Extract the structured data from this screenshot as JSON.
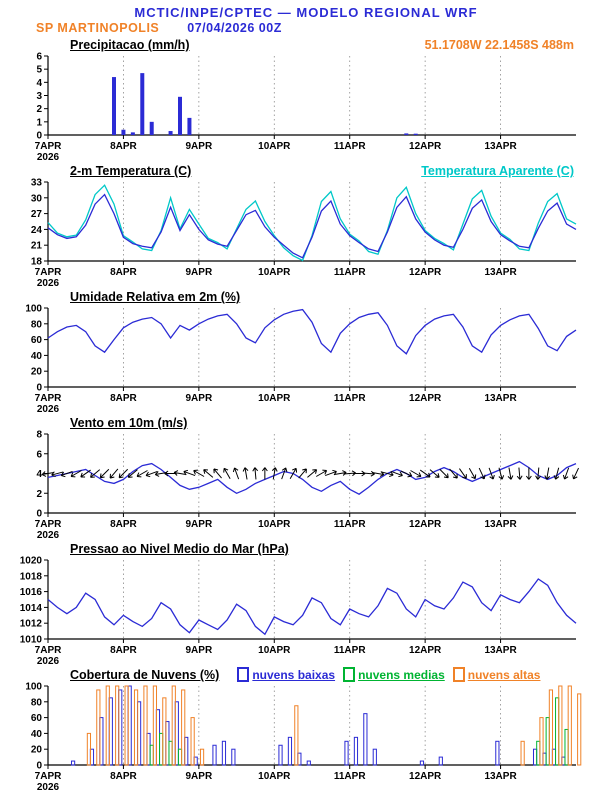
{
  "header": {
    "title": "MCTIC/INPE/CPTEC — MODELO REGIONAL WRF",
    "station": "SP MARTINOPOLIS",
    "run": "07/04/2026 00Z",
    "location": "51.1708W 22.1458S 488m"
  },
  "colors": {
    "blue": "#2b2bd5",
    "cyan": "#00c8c8",
    "green": "#00b432",
    "orange": "#f08228",
    "black": "#000000",
    "grid": "#8c8c8c"
  },
  "x_axis": {
    "tmax": 168,
    "step_hours": 3,
    "ticks": [
      {
        "t": 0,
        "label": "7APR",
        "sub": "2026"
      },
      {
        "t": 24,
        "label": "8APR"
      },
      {
        "t": 48,
        "label": "9APR"
      },
      {
        "t": 72,
        "label": "10APR"
      },
      {
        "t": 96,
        "label": "11APR"
      },
      {
        "t": 120,
        "label": "12APR"
      },
      {
        "t": 144,
        "label": "13APR"
      }
    ]
  },
  "chart_data": [
    {
      "type": "bar",
      "title": "Precipitacao (mm/h)",
      "ylim": [
        0,
        6
      ],
      "yticks": [
        0,
        1,
        2,
        3,
        4,
        5,
        6
      ],
      "series": [
        {
          "name": "precipitacao",
          "color_key": "blue",
          "values": [
            0,
            0,
            0,
            0,
            0,
            0,
            0,
            4.4,
            0.4,
            0.2,
            4.7,
            1.0,
            0,
            0.3,
            2.9,
            1.3,
            0,
            0,
            0,
            0,
            0,
            0,
            0,
            0,
            0,
            0,
            0,
            0,
            0,
            0,
            0,
            0,
            0,
            0,
            0,
            0,
            0,
            0,
            0.12,
            0.1,
            0,
            0,
            0,
            0,
            0,
            0,
            0,
            0,
            0,
            0,
            0,
            0,
            0,
            0,
            0,
            0,
            0
          ]
        }
      ]
    },
    {
      "type": "line",
      "title": "2-m Temperatura (C)",
      "legend": "Temperatura Aparente (C)",
      "ylim": [
        18,
        33
      ],
      "yticks": [
        18,
        21,
        24,
        27,
        30,
        33
      ],
      "series": [
        {
          "name": "temperatura-aparente",
          "color_key": "cyan",
          "values": [
            25.3,
            23.3,
            22.6,
            22.9,
            25.8,
            30.6,
            32.4,
            28.8,
            22.8,
            21.6,
            20.3,
            20.0,
            23.8,
            30.0,
            24.1,
            27.8,
            25.0,
            22.3,
            21.5,
            20.3,
            24.1,
            27.8,
            29.4,
            25.5,
            22.8,
            20.5,
            19.0,
            18.1,
            22.8,
            29.3,
            31.2,
            26.0,
            23.1,
            21.8,
            19.8,
            19.3,
            23.8,
            30.0,
            32.0,
            27.0,
            23.8,
            22.3,
            21.3,
            20.1,
            25.0,
            29.8,
            31.4,
            26.5,
            23.3,
            22.1,
            20.3,
            20.0,
            25.2,
            29.3,
            30.8,
            26.0,
            25.0
          ]
        },
        {
          "name": "temperatura-2m",
          "color_key": "blue",
          "values": [
            24.3,
            23.0,
            22.3,
            22.6,
            24.8,
            28.8,
            30.6,
            27.0,
            22.5,
            21.3,
            20.8,
            20.5,
            23.5,
            28.2,
            23.8,
            26.8,
            24.0,
            22.0,
            21.2,
            20.8,
            23.8,
            26.8,
            27.6,
            24.5,
            22.5,
            21.0,
            19.5,
            18.6,
            22.5,
            27.5,
            29.4,
            25.0,
            22.8,
            21.5,
            20.3,
            19.8,
            23.5,
            28.2,
            30.2,
            26.0,
            23.5,
            22.0,
            21.0,
            20.6,
            24.0,
            28.0,
            29.6,
            25.5,
            23.0,
            21.8,
            20.8,
            20.5,
            24.2,
            27.5,
            29.0,
            25.0,
            24.0
          ]
        }
      ]
    },
    {
      "type": "line",
      "title": "Umidade Relativa em 2m (%)",
      "ylim": [
        0,
        100
      ],
      "yticks": [
        0,
        20,
        40,
        60,
        80,
        100
      ],
      "series": [
        {
          "name": "umidade-relativa",
          "color_key": "blue",
          "values": [
            62,
            70,
            76,
            78,
            70,
            52,
            44,
            60,
            75,
            82,
            86,
            88,
            80,
            62,
            78,
            72,
            80,
            86,
            90,
            92,
            80,
            62,
            56,
            75,
            85,
            92,
            96,
            98,
            82,
            55,
            44,
            68,
            80,
            88,
            92,
            94,
            78,
            52,
            42,
            65,
            78,
            86,
            90,
            92,
            76,
            52,
            44,
            66,
            78,
            85,
            90,
            92,
            74,
            52,
            46,
            64,
            72
          ]
        }
      ]
    },
    {
      "type": "wind",
      "title": "Vento em 10m (m/s)",
      "ylim": [
        0,
        8
      ],
      "yticks": [
        0,
        2,
        4,
        6,
        8
      ],
      "series": [
        {
          "name": "velocidade-vento",
          "color_key": "blue",
          "values": [
            3.6,
            3.8,
            4.0,
            4.2,
            4.4,
            3.8,
            3.2,
            3.0,
            3.4,
            4.2,
            4.8,
            5.0,
            4.4,
            3.6,
            2.8,
            2.4,
            2.6,
            3.0,
            3.4,
            2.6,
            2.0,
            2.4,
            3.0,
            3.4,
            3.8,
            4.2,
            4.0,
            3.4,
            2.6,
            2.2,
            2.8,
            3.2,
            2.4,
            1.9,
            2.6,
            3.4,
            4.0,
            4.4,
            4.0,
            3.4,
            3.6,
            4.2,
            4.6,
            4.2,
            3.6,
            3.2,
            3.6,
            4.0,
            4.4,
            4.8,
            5.2,
            4.6,
            3.8,
            3.4,
            3.8,
            4.6,
            5.0
          ]
        }
      ],
      "arrows": {
        "y": 4,
        "color_key": "black",
        "rot": [
          170,
          165,
          160,
          150,
          145,
          140,
          135,
          130,
          135,
          140,
          150,
          160,
          170,
          180,
          190,
          200,
          210,
          220,
          230,
          240,
          250,
          260,
          265,
          270,
          280,
          290,
          300,
          310,
          320,
          330,
          340,
          350,
          355,
          360,
          365,
          370,
          375,
          380,
          385,
          390,
          395,
          400,
          405,
          410,
          415,
          420,
          425,
          430,
          435,
          440,
          445,
          450,
          455,
          460,
          465,
          470,
          475
        ]
      }
    },
    {
      "type": "line",
      "title": "Pressao ao Nivel Medio do Mar (hPa)",
      "ylim": [
        1010,
        1020
      ],
      "yticks": [
        1010,
        1012,
        1014,
        1016,
        1018,
        1020
      ],
      "series": [
        {
          "name": "pressao-nivel-mar",
          "color_key": "blue",
          "values": [
            1015.0,
            1014.0,
            1013.2,
            1014.0,
            1015.8,
            1015.0,
            1012.8,
            1011.8,
            1013.0,
            1012.2,
            1011.6,
            1012.6,
            1014.6,
            1013.8,
            1011.8,
            1010.8,
            1012.4,
            1011.8,
            1011.2,
            1012.4,
            1014.4,
            1013.6,
            1011.6,
            1010.6,
            1012.8,
            1012.2,
            1011.8,
            1013.0,
            1015.2,
            1014.6,
            1012.6,
            1011.8,
            1013.8,
            1013.2,
            1012.8,
            1014.2,
            1016.4,
            1015.8,
            1013.8,
            1012.8,
            1015.0,
            1014.2,
            1013.8,
            1015.2,
            1017.2,
            1016.6,
            1014.6,
            1013.6,
            1015.6,
            1015.0,
            1014.6,
            1016.0,
            1017.6,
            1016.8,
            1014.6,
            1013.0,
            1012.0
          ]
        }
      ]
    },
    {
      "type": "groupbar",
      "title": "Cobertura de Nuvens (%)",
      "ylim": [
        0,
        100
      ],
      "yticks": [
        0,
        20,
        40,
        60,
        80,
        100
      ],
      "legend": [
        {
          "label": "nuvens baixas",
          "color_key": "blue"
        },
        {
          "label": "nuvens medias",
          "color_key": "green"
        },
        {
          "label": "nuvens altas",
          "color_key": "orange"
        }
      ],
      "series": [
        {
          "name": "nuvens-baixas",
          "color_key": "blue",
          "values": [
            0,
            0,
            0,
            5,
            0,
            20,
            60,
            85,
            95,
            100,
            80,
            40,
            70,
            55,
            80,
            35,
            10,
            0,
            25,
            30,
            20,
            0,
            0,
            0,
            0,
            25,
            35,
            15,
            5,
            0,
            0,
            0,
            30,
            35,
            65,
            20,
            0,
            0,
            0,
            0,
            5,
            0,
            10,
            0,
            0,
            0,
            0,
            0,
            30,
            0,
            0,
            0,
            20,
            15,
            20,
            10,
            0
          ]
        },
        {
          "name": "nuvens-medias",
          "color_key": "green",
          "values": [
            0,
            0,
            0,
            0,
            0,
            0,
            0,
            0,
            0,
            0,
            0,
            25,
            40,
            30,
            20,
            0,
            0,
            0,
            0,
            0,
            0,
            0,
            0,
            0,
            0,
            0,
            0,
            0,
            0,
            0,
            0,
            0,
            0,
            0,
            0,
            0,
            0,
            0,
            0,
            0,
            0,
            0,
            0,
            0,
            0,
            0,
            0,
            0,
            0,
            0,
            0,
            0,
            30,
            60,
            85,
            45,
            0
          ]
        },
        {
          "name": "nuvens-altas",
          "color_key": "orange",
          "values": [
            0,
            0,
            0,
            0,
            40,
            95,
            100,
            100,
            100,
            95,
            100,
            100,
            85,
            100,
            95,
            60,
            20,
            0,
            0,
            0,
            0,
            0,
            0,
            0,
            0,
            0,
            75,
            0,
            0,
            0,
            0,
            0,
            0,
            0,
            0,
            0,
            0,
            0,
            0,
            0,
            0,
            0,
            0,
            0,
            0,
            0,
            0,
            0,
            0,
            0,
            30,
            0,
            60,
            95,
            100,
            100,
            90
          ]
        }
      ]
    }
  ]
}
